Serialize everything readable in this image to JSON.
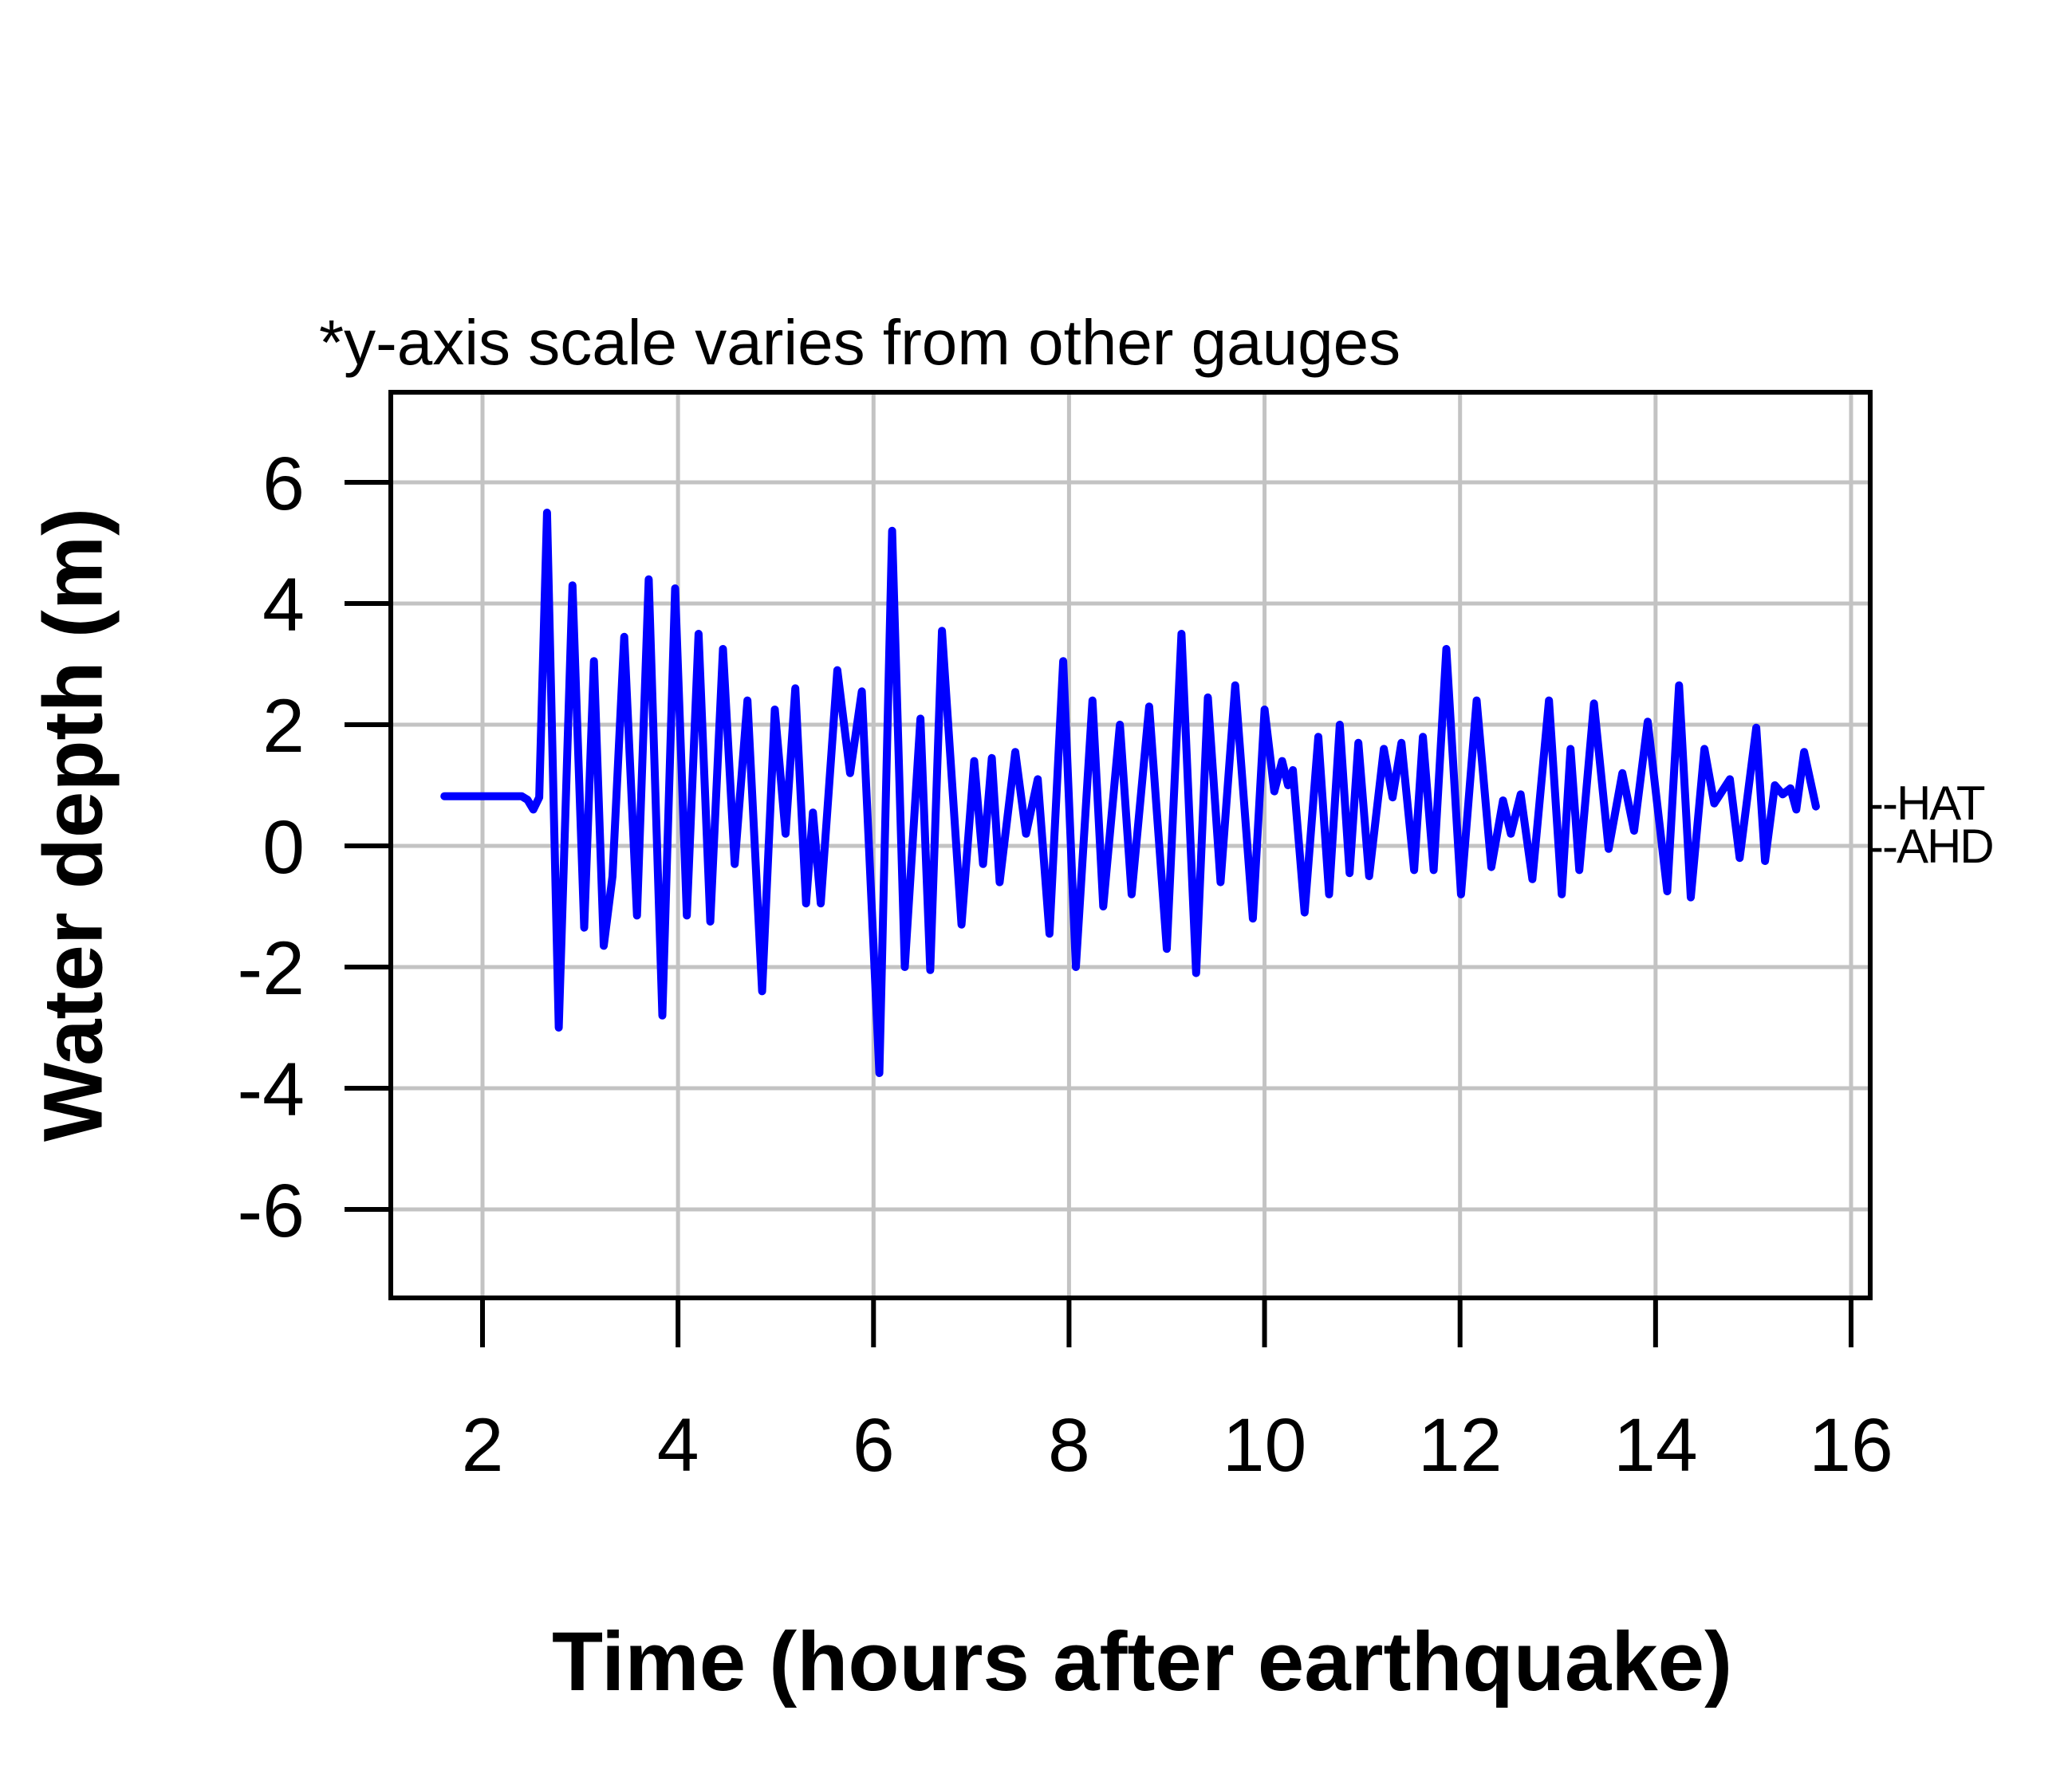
{
  "title": "*y-axis scale varies from other gauges",
  "axes": {
    "x_label": "Time (hours after earthquake)",
    "y_label": "Water depth (m)",
    "x_tick_labels": [
      "2",
      "4",
      "6",
      "8",
      "10",
      "12",
      "14",
      "16"
    ],
    "x_tick_values": [
      2,
      4,
      6,
      8,
      10,
      12,
      14,
      16
    ],
    "y_tick_labels": [
      "6",
      "4",
      "2",
      "0",
      "-2",
      "-4",
      "-6"
    ],
    "y_tick_values": [
      6,
      4,
      2,
      0,
      -2,
      -4,
      -6
    ]
  },
  "annotations": {
    "hat_label": "--HAT",
    "ahd_label": "--AHD",
    "hat_level_m": 0.7,
    "ahd_level_m": 0.0
  },
  "colors": {
    "line": "#0000FF",
    "grid": "#C3C3C3",
    "axis": "#000000",
    "text": "#000000",
    "background": "#FFFFFF"
  },
  "chart_data": {
    "type": "line",
    "title": "*y-axis scale varies from other gauges",
    "xlabel": "Time (hours after earthquake)",
    "ylabel": "Water depth (m)",
    "xlim": [
      1.05,
      16.2
    ],
    "ylim": [
      -7.5,
      7.5
    ],
    "grid": true,
    "legend": "none",
    "reference_levels": [
      {
        "label": "HAT",
        "value": 0.7
      },
      {
        "label": "AHD",
        "value": 0.0
      }
    ],
    "series": [
      {
        "name": "water depth",
        "color": "#0000FF",
        "points": [
          [
            1.61,
            0.82
          ],
          [
            2.4,
            0.82
          ],
          [
            2.46,
            0.76
          ],
          [
            2.52,
            0.6
          ],
          [
            2.58,
            0.8
          ],
          [
            2.66,
            5.5
          ],
          [
            2.78,
            -3.0
          ],
          [
            2.92,
            4.3
          ],
          [
            3.04,
            -1.35
          ],
          [
            3.14,
            3.05
          ],
          [
            3.24,
            -1.65
          ],
          [
            3.33,
            -0.5
          ],
          [
            3.45,
            3.45
          ],
          [
            3.58,
            -1.15
          ],
          [
            3.7,
            4.4
          ],
          [
            3.84,
            -2.8
          ],
          [
            3.97,
            4.25
          ],
          [
            4.09,
            -1.15
          ],
          [
            4.21,
            3.5
          ],
          [
            4.33,
            -1.25
          ],
          [
            4.46,
            3.25
          ],
          [
            4.58,
            -0.3
          ],
          [
            4.71,
            2.4
          ],
          [
            4.86,
            -2.4
          ],
          [
            4.99,
            2.25
          ],
          [
            5.1,
            0.2
          ],
          [
            5.2,
            2.6
          ],
          [
            5.31,
            -0.95
          ],
          [
            5.38,
            0.55
          ],
          [
            5.46,
            -0.95
          ],
          [
            5.63,
            2.9
          ],
          [
            5.76,
            1.2
          ],
          [
            5.88,
            2.55
          ],
          [
            6.06,
            -3.75
          ],
          [
            6.19,
            5.2
          ],
          [
            6.32,
            -2.0
          ],
          [
            6.48,
            2.1
          ],
          [
            6.58,
            -2.05
          ],
          [
            6.7,
            3.55
          ],
          [
            6.9,
            -1.3
          ],
          [
            7.03,
            1.4
          ],
          [
            7.12,
            -0.3
          ],
          [
            7.21,
            1.45
          ],
          [
            7.29,
            -0.6
          ],
          [
            7.45,
            1.55
          ],
          [
            7.56,
            0.2
          ],
          [
            7.68,
            1.1
          ],
          [
            7.8,
            -1.45
          ],
          [
            7.94,
            3.05
          ],
          [
            8.07,
            -2.0
          ],
          [
            8.24,
            2.4
          ],
          [
            8.35,
            -1.0
          ],
          [
            8.52,
            2.0
          ],
          [
            8.64,
            -0.8
          ],
          [
            8.82,
            2.3
          ],
          [
            9.0,
            -1.7
          ],
          [
            9.15,
            3.5
          ],
          [
            9.3,
            -2.1
          ],
          [
            9.42,
            2.45
          ],
          [
            9.55,
            -0.6
          ],
          [
            9.7,
            2.65
          ],
          [
            9.88,
            -1.2
          ],
          [
            10.0,
            2.25
          ],
          [
            10.1,
            0.9
          ],
          [
            10.18,
            1.4
          ],
          [
            10.24,
            1.0
          ],
          [
            10.29,
            1.25
          ],
          [
            10.41,
            -1.1
          ],
          [
            10.55,
            1.8
          ],
          [
            10.66,
            -0.8
          ],
          [
            10.77,
            2.0
          ],
          [
            10.87,
            -0.45
          ],
          [
            10.96,
            1.7
          ],
          [
            11.07,
            -0.5
          ],
          [
            11.22,
            1.6
          ],
          [
            11.31,
            0.8
          ],
          [
            11.4,
            1.7
          ],
          [
            11.53,
            -0.4
          ],
          [
            11.62,
            1.8
          ],
          [
            11.73,
            -0.4
          ],
          [
            11.86,
            3.25
          ],
          [
            12.01,
            -0.8
          ],
          [
            12.17,
            2.4
          ],
          [
            12.32,
            -0.35
          ],
          [
            12.44,
            0.75
          ],
          [
            12.52,
            0.2
          ],
          [
            12.62,
            0.85
          ],
          [
            12.74,
            -0.55
          ],
          [
            12.91,
            2.4
          ],
          [
            13.04,
            -0.8
          ],
          [
            13.13,
            1.6
          ],
          [
            13.22,
            -0.4
          ],
          [
            13.37,
            2.35
          ],
          [
            13.52,
            -0.05
          ],
          [
            13.66,
            1.2
          ],
          [
            13.78,
            0.25
          ],
          [
            13.92,
            2.05
          ],
          [
            14.12,
            -0.75
          ],
          [
            14.24,
            2.65
          ],
          [
            14.36,
            -0.85
          ],
          [
            14.5,
            1.6
          ],
          [
            14.6,
            0.7
          ],
          [
            14.76,
            1.1
          ],
          [
            14.86,
            -0.2
          ],
          [
            15.03,
            1.95
          ],
          [
            15.12,
            -0.25
          ],
          [
            15.22,
            1.0
          ],
          [
            15.3,
            0.85
          ],
          [
            15.38,
            0.95
          ],
          [
            15.44,
            0.6
          ],
          [
            15.52,
            1.55
          ],
          [
            15.64,
            0.65
          ]
        ]
      }
    ]
  }
}
